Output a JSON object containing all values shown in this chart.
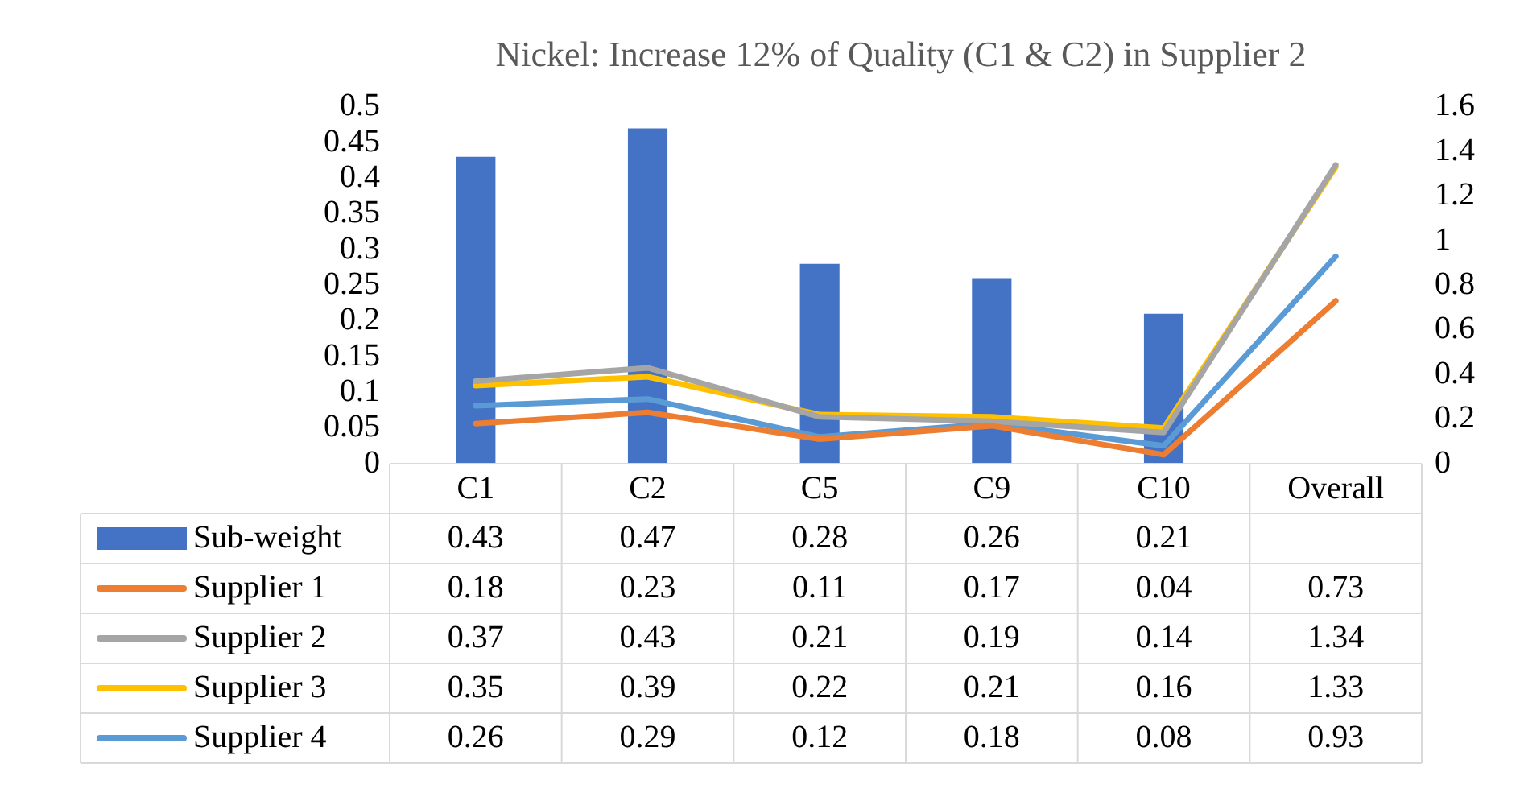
{
  "chart_data": {
    "type": "bar",
    "title": "Nickel: Increase 12% of Quality (C1 & C2) in Supplier 2",
    "categories": [
      "C1",
      "C2",
      "C5",
      "C9",
      "C10",
      "Overall"
    ],
    "series": [
      {
        "name": "Sub-weight",
        "color": "#4472c4",
        "values": [
          0.43,
          0.47,
          0.28,
          0.26,
          0.21,
          null
        ]
      },
      {
        "name": "Supplier 1",
        "type": "line",
        "axis": "y2",
        "color": "#ed7d31",
        "values": [
          0.18,
          0.23,
          0.11,
          0.17,
          0.04,
          0.73
        ]
      },
      {
        "name": "Supplier 2",
        "type": "line",
        "axis": "y2",
        "color": "#a5a5a5",
        "values": [
          0.37,
          0.43,
          0.21,
          0.19,
          0.14,
          1.34
        ]
      },
      {
        "name": "Supplier 3",
        "type": "line",
        "axis": "y2",
        "color": "#ffc000",
        "values": [
          0.35,
          0.39,
          0.22,
          0.21,
          0.16,
          1.33
        ]
      },
      {
        "name": "Supplier 4",
        "type": "line",
        "axis": "y2",
        "color": "#5b9bd5",
        "values": [
          0.26,
          0.29,
          0.12,
          0.18,
          0.08,
          0.93
        ]
      }
    ],
    "ylim": [
      0,
      0.5
    ],
    "yticks": [
      0,
      0.05,
      0.1,
      0.15,
      0.2,
      0.25,
      0.3,
      0.35,
      0.4,
      0.45,
      0.5
    ],
    "y2lim": [
      0,
      1.6
    ],
    "y2ticks": [
      0,
      0.2,
      0.4,
      0.6,
      0.8,
      1,
      1.2,
      1.4,
      1.6
    ],
    "data_labels": true,
    "marker": "none",
    "legend": "bottom"
  }
}
